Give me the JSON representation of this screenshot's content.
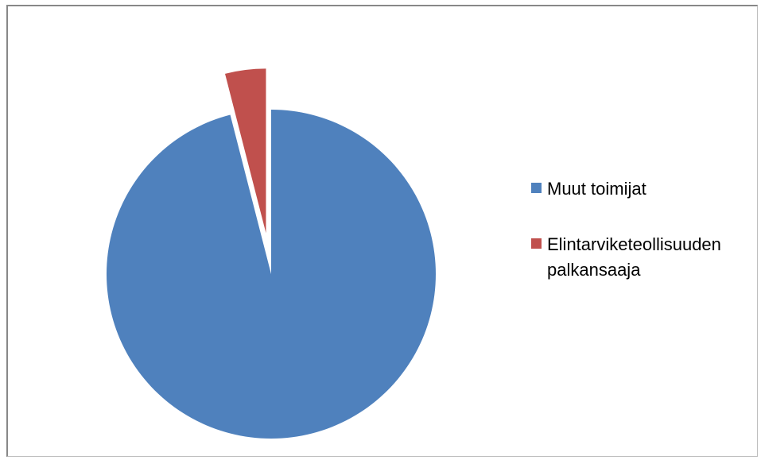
{
  "chart_data": {
    "type": "pie",
    "title": "",
    "slices": [
      {
        "name": "Muut toimijat",
        "value": 96,
        "color": "#4f81bd",
        "exploded": false
      },
      {
        "name": "Elintarviketeollisuuden palkansaaja",
        "value": 4,
        "color": "#c0504d",
        "exploded": true
      }
    ],
    "start_angle_deg": 0,
    "direction": "counterclockwise-from-top for slice 2",
    "legend_position": "right"
  }
}
